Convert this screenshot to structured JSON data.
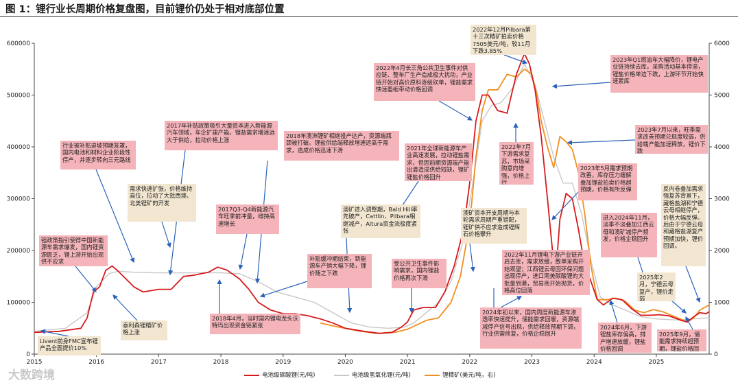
{
  "title": "图 1：锂行业长周期价格复盘图，目前锂价仍处于相对底部位置",
  "watermark": "大数跨境",
  "colors": {
    "carbonate": "#d7191c",
    "hydroxide": "#c8c8c8",
    "spodumene": "#f28e1e",
    "pink_box": "#f4b4ba",
    "beige_box": "#f2e6d0",
    "arrow": "#2a62b8"
  },
  "chart_data": {
    "type": "line",
    "xlim": [
      2015.0,
      2025.85
    ],
    "x_ticks": [
      2015,
      2016,
      2017,
      2018,
      2019,
      2020,
      2021,
      2022,
      2023,
      2024,
      2025
    ],
    "x_tick_labels": [
      "2015",
      "2016",
      "2017",
      "2018",
      "2019",
      "2020",
      "2021",
      "2022",
      "2023",
      "2024",
      "2025"
    ],
    "y_left": {
      "range": [
        0,
        600000
      ],
      "ticks": [
        0,
        100000,
        200000,
        300000,
        400000,
        500000,
        600000
      ],
      "tick_labels": [
        "0",
        "100000",
        "200000",
        "300000",
        "400000",
        "500000",
        "600000"
      ]
    },
    "y_right": {
      "range": [
        0,
        6000
      ],
      "ticks": [
        0,
        1000,
        2000,
        3000,
        4000,
        5000,
        6000
      ],
      "tick_labels": [
        "0",
        "1000",
        "2000",
        "3000",
        "4000",
        "5000",
        "6000"
      ]
    },
    "grid": false,
    "legend_position": "bottom-center",
    "series": [
      {
        "name": "电池级碳酸锂(元/吨)",
        "color": "#d7191c",
        "axis": "left",
        "points": [
          [
            2015.0,
            42000
          ],
          [
            2015.4,
            44000
          ],
          [
            2015.75,
            50000
          ],
          [
            2015.85,
            70000
          ],
          [
            2015.95,
            120000
          ],
          [
            2016.05,
            130000
          ],
          [
            2016.15,
            162000
          ],
          [
            2016.25,
            170000
          ],
          [
            2016.35,
            160000
          ],
          [
            2016.45,
            148000
          ],
          [
            2016.6,
            130000
          ],
          [
            2016.75,
            120000
          ],
          [
            2017.0,
            125000
          ],
          [
            2017.2,
            125000
          ],
          [
            2017.4,
            150000
          ],
          [
            2017.55,
            152000
          ],
          [
            2017.8,
            158000
          ],
          [
            2017.95,
            168000
          ],
          [
            2018.1,
            162000
          ],
          [
            2018.3,
            145000
          ],
          [
            2018.45,
            125000
          ],
          [
            2018.6,
            100000
          ],
          [
            2018.8,
            85000
          ],
          [
            2019.0,
            78000
          ],
          [
            2019.2,
            78000
          ],
          [
            2019.4,
            74000
          ],
          [
            2019.6,
            68000
          ],
          [
            2019.8,
            60000
          ],
          [
            2020.0,
            50000
          ],
          [
            2020.3,
            44000
          ],
          [
            2020.55,
            40000
          ],
          [
            2020.75,
            42000
          ],
          [
            2020.9,
            52000
          ],
          [
            2021.0,
            62000
          ],
          [
            2021.1,
            85000
          ],
          [
            2021.25,
            90000
          ],
          [
            2021.45,
            90000
          ],
          [
            2021.6,
            120000
          ],
          [
            2021.75,
            170000
          ],
          [
            2021.9,
            240000
          ],
          [
            2022.0,
            330000
          ],
          [
            2022.1,
            450000
          ],
          [
            2022.2,
            500000
          ],
          [
            2022.3,
            500000
          ],
          [
            2022.45,
            470000
          ],
          [
            2022.6,
            465000
          ],
          [
            2022.75,
            540000
          ],
          [
            2022.88,
            580000
          ],
          [
            2022.96,
            560000
          ],
          [
            2023.05,
            510000
          ],
          [
            2023.15,
            420000
          ],
          [
            2023.25,
            300000
          ],
          [
            2023.33,
            200000
          ],
          [
            2023.4,
            180000
          ],
          [
            2023.45,
            260000
          ],
          [
            2023.55,
            310000
          ],
          [
            2023.65,
            300000
          ],
          [
            2023.75,
            240000
          ],
          [
            2023.85,
            170000
          ],
          [
            2023.95,
            140000
          ],
          [
            2024.05,
            105000
          ],
          [
            2024.15,
            95000
          ],
          [
            2024.3,
            108000
          ],
          [
            2024.45,
            105000
          ],
          [
            2024.6,
            88000
          ],
          [
            2024.75,
            75000
          ],
          [
            2024.9,
            75000
          ],
          [
            2025.05,
            76000
          ],
          [
            2025.2,
            74000
          ],
          [
            2025.4,
            65000
          ],
          [
            2025.5,
            62000
          ],
          [
            2025.6,
            72000
          ],
          [
            2025.7,
            80000
          ],
          [
            2025.8,
            78000
          ],
          [
            2025.85,
            82000
          ]
        ]
      },
      {
        "name": "电池级氢氧化锂(元/吨)",
        "color": "#c8c8c8",
        "axis": "left",
        "points": [
          [
            2015.0,
            44000
          ],
          [
            2015.5,
            50000
          ],
          [
            2015.85,
            80000
          ],
          [
            2016.0,
            130000
          ],
          [
            2016.2,
            155000
          ],
          [
            2016.35,
            160000
          ],
          [
            2016.6,
            158000
          ],
          [
            2017.0,
            157000
          ],
          [
            2017.5,
            157000
          ],
          [
            2018.0,
            157000
          ],
          [
            2018.3,
            155000
          ],
          [
            2018.6,
            140000
          ],
          [
            2018.9,
            120000
          ],
          [
            2019.2,
            110000
          ],
          [
            2019.5,
            100000
          ],
          [
            2019.8,
            80000
          ],
          [
            2020.1,
            60000
          ],
          [
            2020.4,
            52000
          ],
          [
            2020.7,
            50000
          ],
          [
            2020.95,
            52000
          ],
          [
            2021.1,
            60000
          ],
          [
            2021.3,
            80000
          ],
          [
            2021.5,
            100000
          ],
          [
            2021.7,
            140000
          ],
          [
            2021.9,
            220000
          ],
          [
            2022.05,
            330000
          ],
          [
            2022.2,
            450000
          ],
          [
            2022.35,
            480000
          ],
          [
            2022.5,
            485000
          ],
          [
            2022.7,
            515000
          ],
          [
            2022.88,
            560000
          ],
          [
            2023.05,
            520000
          ],
          [
            2023.2,
            450000
          ],
          [
            2023.35,
            380000
          ],
          [
            2023.5,
            330000
          ],
          [
            2023.65,
            330000
          ],
          [
            2023.8,
            270000
          ],
          [
            2023.95,
            180000
          ],
          [
            2024.1,
            110000
          ],
          [
            2024.3,
            95000
          ],
          [
            2024.5,
            85000
          ],
          [
            2024.75,
            72000
          ],
          [
            2025.0,
            68000
          ],
          [
            2025.3,
            66000
          ],
          [
            2025.6,
            68000
          ],
          [
            2025.85,
            70000
          ]
        ]
      },
      {
        "name": "锂精矿(美元/吨，右)",
        "color": "#f28e1e",
        "axis": "right",
        "points": [
          [
            2019.6,
            600
          ],
          [
            2019.9,
            520
          ],
          [
            2020.2,
            450
          ],
          [
            2020.5,
            400
          ],
          [
            2020.8,
            420
          ],
          [
            2021.0,
            480
          ],
          [
            2021.3,
            650
          ],
          [
            2021.5,
            700
          ],
          [
            2021.7,
            1000
          ],
          [
            2021.85,
            1500
          ],
          [
            2022.0,
            2500
          ],
          [
            2022.1,
            3800
          ],
          [
            2022.2,
            4700
          ],
          [
            2022.3,
            5100
          ],
          [
            2022.45,
            5100
          ],
          [
            2022.6,
            5400
          ],
          [
            2022.75,
            5350
          ],
          [
            2022.88,
            5500
          ],
          [
            2023.0,
            5400
          ],
          [
            2023.08,
            5000
          ],
          [
            2023.15,
            4500
          ],
          [
            2023.25,
            4000
          ],
          [
            2023.35,
            3600
          ],
          [
            2023.45,
            4200
          ],
          [
            2023.55,
            4100
          ],
          [
            2023.65,
            3950
          ],
          [
            2023.75,
            3500
          ],
          [
            2023.85,
            2700
          ],
          [
            2023.95,
            1700
          ],
          [
            2024.05,
            1050
          ],
          [
            2024.2,
            1050
          ],
          [
            2024.35,
            1080
          ],
          [
            2024.5,
            1020
          ],
          [
            2024.65,
            850
          ],
          [
            2024.8,
            800
          ],
          [
            2024.95,
            860
          ],
          [
            2025.1,
            820
          ],
          [
            2025.3,
            720
          ],
          [
            2025.5,
            620
          ],
          [
            2025.6,
            700
          ],
          [
            2025.7,
            850
          ],
          [
            2025.85,
            950
          ]
        ]
      }
    ]
  },
  "annotations": [
    {
      "id": "a1",
      "style": "pink",
      "text": "行业被补贴退坡预期笼罩，国内电池和材料企业阶段性停产，并逐步转向三元路线"
    },
    {
      "id": "a2",
      "style": "pink",
      "text": "2017年补贴政策吸引大量资本进入新能源汽车领域，车企扩建产能。锂盐需求增速远大于供给，拉动价格上涨"
    },
    {
      "id": "a3",
      "style": "pink",
      "text": "2018年澳洲锂矿相继投产达产，资源端瓶颈被打破。锂盐供给端释放增速远高于需求，造成价格迅速下滑"
    },
    {
      "id": "a4",
      "style": "pink",
      "text": "2021年全球新能源车产业高速发展，拉动锂盐需求，但因前期资源端产能出清造成供给短缺，锂矿锂盐价格回升"
    },
    {
      "id": "a5",
      "style": "pink",
      "text": "2022年4月长三角公共卫生事件对供应链、整车厂生产造成极大扰动，产业链开始对高价原料逐级砍单，锂盐需求快速萎缩带动价格回调"
    },
    {
      "id": "a6",
      "style": "beige",
      "text": "2022年12月Pilbara第十三次精矿拍卖价格7505美元/吨，较11月下跌3.85%"
    },
    {
      "id": "a7",
      "style": "pink",
      "text": "2023年Q1燃油车大幅降价，锂电产业链持续去库，采购活动基本停滞，锂盐价格单边下跌，上游环节开始快速累库"
    },
    {
      "id": "a8",
      "style": "pink",
      "text": "2023年7月以来，旺季需求改善预期兑现度较弱，供给端产能加速释放，锂价下跌"
    },
    {
      "id": "a9",
      "style": "pink",
      "text": "2022年7月下游需求复苏，市场采购意向增强，价格上行"
    },
    {
      "id": "a10",
      "style": "pink",
      "text": "2023年5月需求预期改善，库存压力缓解叠加锂盐拍卖价格超预期，价格有所反弹"
    },
    {
      "id": "a11",
      "style": "beige",
      "text": "需求快速扩张，价格维持高位，拉动了大批西澳、北美锂矿的开发"
    },
    {
      "id": "a12",
      "style": "pink",
      "text": "2017Q3-Q4新能源汽车旺季前冲量，维持高速增长"
    },
    {
      "id": "a13",
      "style": "beige",
      "text": "澳矿进入调整期，Bald Hill率先破产，Cattlin、Pilbara相继减产，Altura资金流极度紧张"
    },
    {
      "id": "a14",
      "style": "beige",
      "text": "澳矿资本开支周期与本轮需求周期严重错配，锂矿供不应求造成锂辉石价格攀升"
    },
    {
      "id": "a15",
      "style": "pink",
      "text": "强政策指引使得中国新能源车需求爆发，国内锂资源匮乏，锂上游开始出现供不应求"
    },
    {
      "id": "a16",
      "style": "beige",
      "text": "泰利森锂精矿价格上涨"
    },
    {
      "id": "a17",
      "style": "beige",
      "text": "Livent前身FMC宣布锂产品全面提价10%"
    },
    {
      "id": "a18",
      "style": "pink",
      "text": "补贴缓冲期结束，新能源车产销大幅下降，锂价随之下跌"
    },
    {
      "id": "a19",
      "style": "pink",
      "text": "2018年4月，当时国内锂电龙头沃特玛出现资金链紧张"
    },
    {
      "id": "a20",
      "style": "pink",
      "text": "受公共卫生事件影响需求，国内锂盐价格再次下滑"
    },
    {
      "id": "a21",
      "style": "pink",
      "text": "2022年11月锂电下游产业链开启去库，需求放缓，散单采购开始观望；江西锂云母因环保问题出现停产，进口南美碳酸锂的大批量到港，贸易商开始抛货，价格高位回落"
    },
    {
      "id": "a22",
      "style": "pink",
      "text": "2024年初以来，国内周度新能源车渗透率快速提升，储能需求回暖，资源端减停产信号出现，供给释放预期下调，行业供需修复，价格企稳回升"
    },
    {
      "id": "a23",
      "style": "pink",
      "text": "进入2024年11月，淡季不淡叠加江西云母和澳矿减停产频发，价格企稳回升"
    },
    {
      "id": "a24",
      "style": "pink",
      "text": "2024年6月，下游锂盐库存偏高，排产增速放缓，锂盐价格回调"
    },
    {
      "id": "a25",
      "style": "beige",
      "text": "2025年2月，宁德云母复产，锂价走弱"
    },
    {
      "id": "a26",
      "style": "beige",
      "text": "反内卷叠加需求强复苏背景下，藏格盐湖和宁德云母相继停产，价格大幅反弹。后由于宁德云母和藏格盐湖复产预期加快，锂价回调。"
    },
    {
      "id": "a27",
      "style": "pink",
      "text": "2025年9月，储能需求持续超预期，锂盐价格回暖"
    }
  ]
}
